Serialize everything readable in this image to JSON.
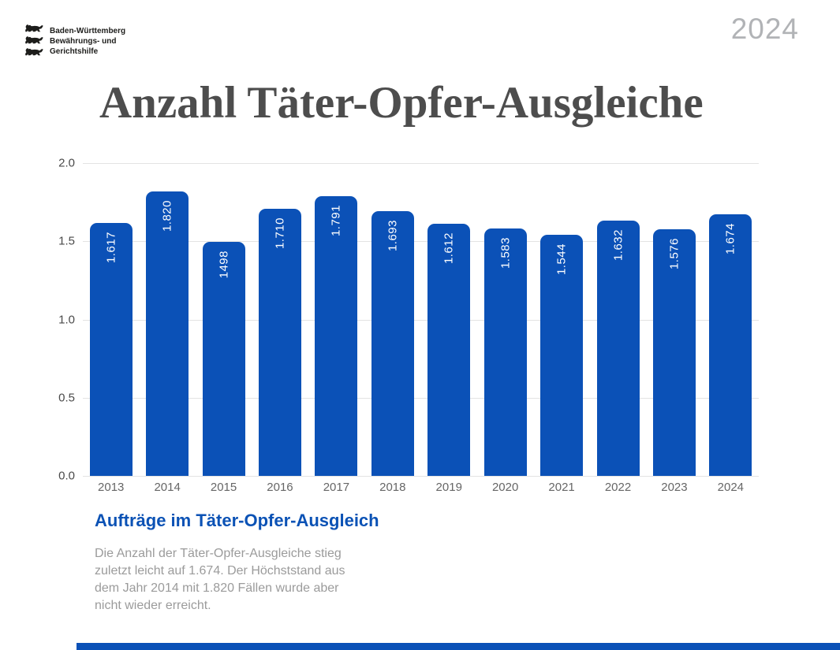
{
  "header": {
    "logo_lines": [
      "Baden-Württemberg",
      "Bewährungs- und",
      "Gerichtshilfe"
    ],
    "logo_icon": "three-lions-coat-of-arms",
    "year_badge": "2024"
  },
  "title": "Anzahl Täter-Opfer-Ausgleiche",
  "chart_data": {
    "type": "bar",
    "title": "Anzahl Täter-Opfer-Ausgleiche",
    "categories": [
      "2013",
      "2014",
      "2015",
      "2016",
      "2017",
      "2018",
      "2019",
      "2020",
      "2021",
      "2022",
      "2023",
      "2024"
    ],
    "values": [
      1617,
      1820,
      1498,
      1710,
      1791,
      1693,
      1612,
      1583,
      1544,
      1632,
      1576,
      1674
    ],
    "bar_labels": [
      "1.617",
      "1.820",
      "1498",
      "1.710",
      "1.791",
      "1.693",
      "1.612",
      "1.583",
      "1.544",
      "1.632",
      "1.576",
      "1.674"
    ],
    "y_ticks": [
      {
        "label": "2.0",
        "value": 2000
      },
      {
        "label": "1.5",
        "value": 1500
      },
      {
        "label": "1.0",
        "value": 1000
      },
      {
        "label": "0.5",
        "value": 500
      },
      {
        "label": "0.0",
        "value": 0
      }
    ],
    "ylim": [
      0,
      2000
    ],
    "grid": true,
    "legend": "none",
    "xlabel": "",
    "ylabel": "",
    "bar_color": "#0b51b7",
    "bar_label_color": "#ffffff"
  },
  "footer": {
    "heading": "Aufträge im Täter-Opfer-Ausgleich",
    "body_lines": [
      "Die Anzahl der Täter-Opfer-Ausgleiche stieg",
      "zuletzt leicht auf 1.674. Der Höchststand aus",
      "dem Jahr 2014 mit 1.820 Fällen wurde aber",
      "nicht wieder erreicht."
    ]
  },
  "colors": {
    "accent_blue": "#0b51b7",
    "title_gray": "#4d4d4d",
    "year_badge_gray": "#b1b3b6",
    "body_text_gray": "#9b9b9b",
    "axis_text_gray": "#4a4a4a",
    "grid_gray": "#e3e3e3"
  }
}
